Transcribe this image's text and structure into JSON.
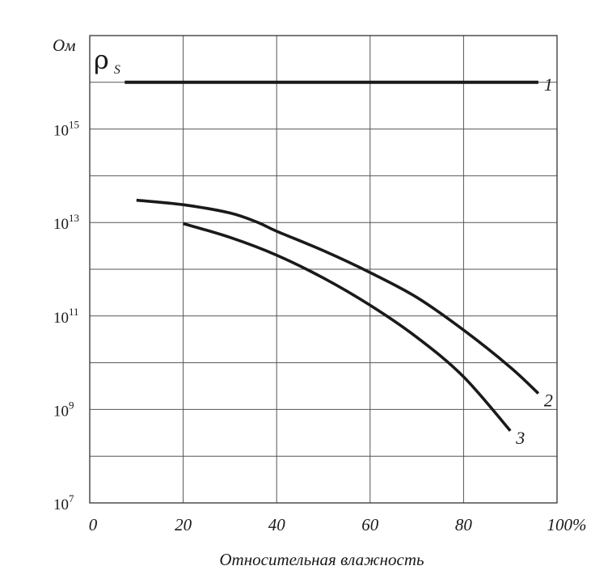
{
  "chart_data": {
    "type": "line",
    "title": "",
    "ylabel": "Ом",
    "symbol": {
      "main": "ρ",
      "sub": "S"
    },
    "xlabel": "Относительная влажность",
    "xlim": [
      0,
      100
    ],
    "ylim_log10": [
      7,
      17
    ],
    "grid": true,
    "x_ticks": [
      "0",
      "20",
      "40",
      "60",
      "80",
      "100%"
    ],
    "y_ticks": [
      {
        "base": "10",
        "exp": "7"
      },
      {
        "base": "10",
        "exp": "9"
      },
      {
        "base": "10",
        "exp": "11"
      },
      {
        "base": "10",
        "exp": "13"
      },
      {
        "base": "10",
        "exp": "15"
      }
    ],
    "series": [
      {
        "label": "1",
        "x": [
          7.5,
          96
        ],
        "y": [
          1e+16,
          1e+16
        ]
      },
      {
        "label": "2",
        "x": [
          10,
          20,
          30,
          36,
          40,
          50,
          60,
          70,
          80,
          90,
          96
        ],
        "y": [
          30000000000000.0,
          24000000000000.0,
          16000000000000.0,
          10000000000000.0,
          6500000000000.0,
          2500000000000.0,
          850000000000.0,
          250000000000.0,
          50000000000.0,
          8000000000.0,
          2200000000.0
        ]
      },
      {
        "label": "3",
        "x": [
          20,
          30,
          40,
          50,
          60,
          70,
          80,
          90
        ],
        "y": [
          9500000000000.0,
          4800000000000.0,
          2000000000000.0,
          650000000000.0,
          170000000000.0,
          35000000000.0,
          5000000000.0,
          350000000.0
        ]
      }
    ],
    "colors": {
      "line": "#1a1a1a",
      "grid": "#555555",
      "axis": "#333333"
    }
  }
}
